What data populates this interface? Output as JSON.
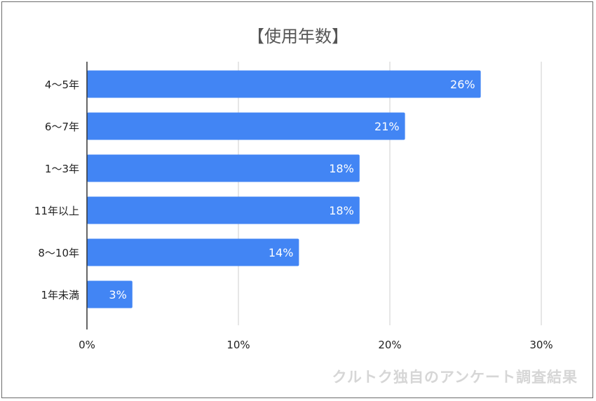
{
  "chart_data": {
    "type": "bar",
    "orientation": "horizontal",
    "title": "【使用年数】",
    "categories": [
      "4〜5年",
      "6〜7年",
      "1〜3年",
      "11年以上",
      "8〜10年",
      "1年未満"
    ],
    "values": [
      26,
      21,
      18,
      18,
      14,
      3
    ],
    "data_labels": [
      "26%",
      "21%",
      "18%",
      "18%",
      "14%",
      "3%"
    ],
    "xlim": [
      0,
      30
    ],
    "x_ticks": [
      0,
      10,
      20,
      30
    ],
    "x_tick_labels": [
      "0%",
      "10%",
      "20%",
      "30%"
    ],
    "xlabel": "",
    "ylabel": "",
    "grid": "vertical",
    "bar_color": "#4285f4"
  },
  "watermark": "クルトク独自のアンケート調査結果"
}
